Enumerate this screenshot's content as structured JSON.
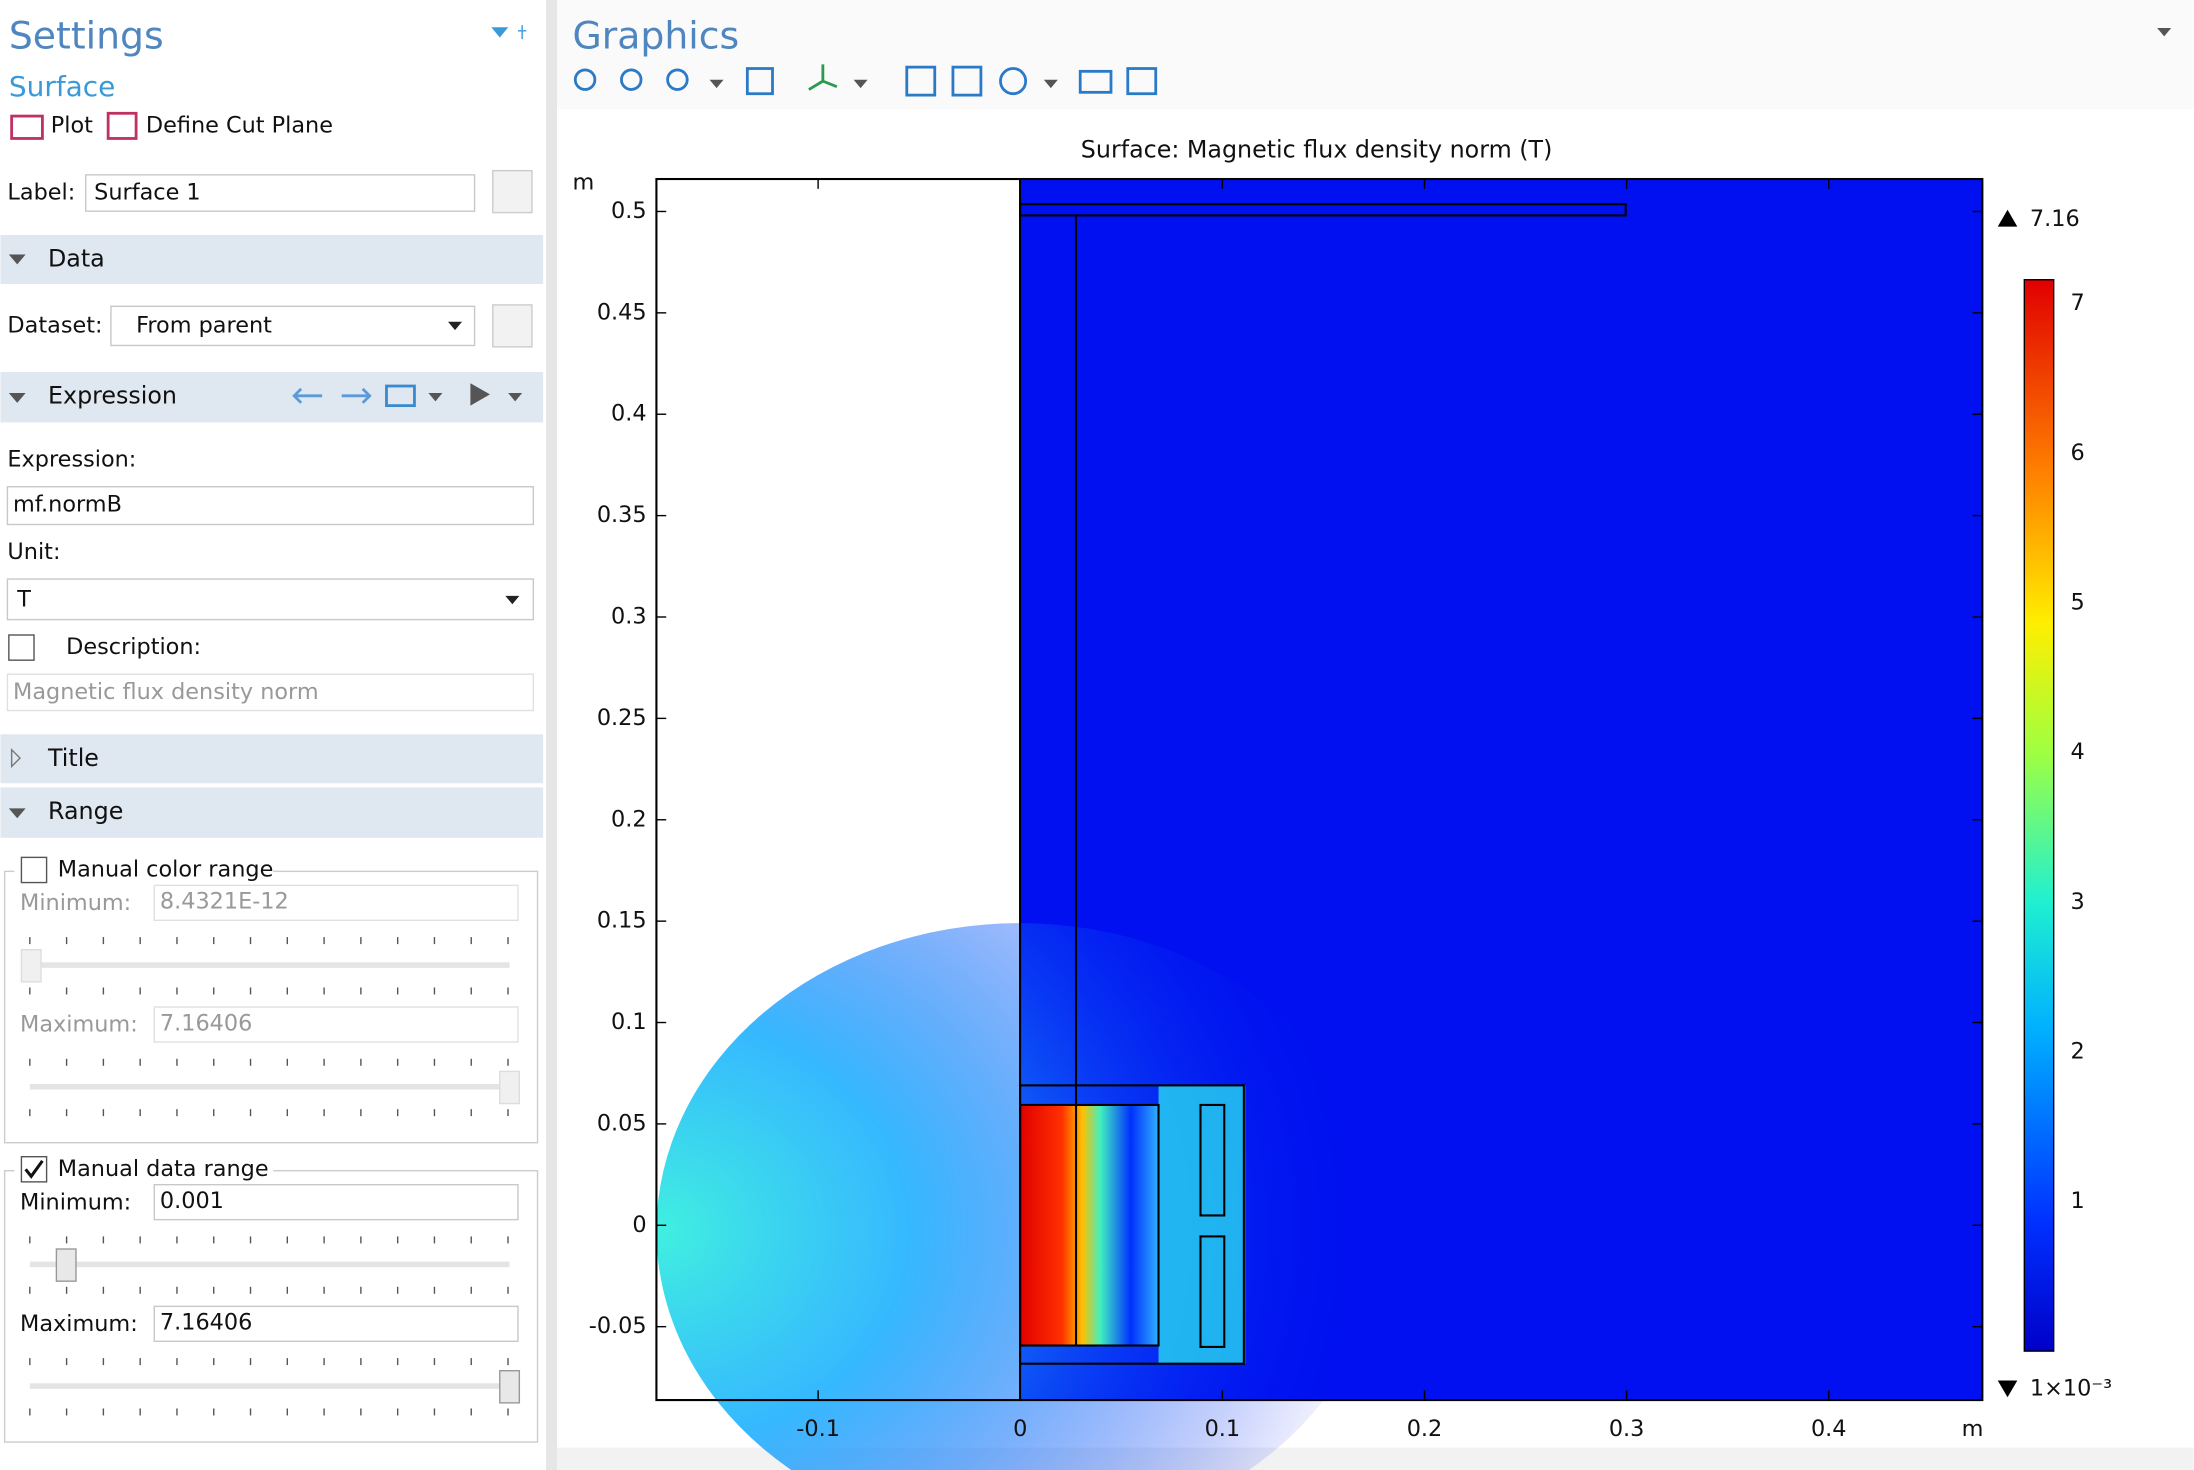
{
  "settings": {
    "title": "Settings",
    "node": "Surface",
    "plot": "Plot",
    "cut_plane": "Define Cut Plane",
    "label_field": {
      "label": "Label:",
      "value": "Surface 1"
    },
    "data_section": "Data",
    "dataset": {
      "label": "Dataset:",
      "value": "From parent"
    },
    "expression_section": "Expression",
    "expression": {
      "label": "Expression:",
      "value": "mf.normB"
    },
    "unit": {
      "label": "Unit:",
      "value": "T"
    },
    "description": {
      "label": "Description:",
      "value": "Magnetic flux density norm",
      "checked": false
    },
    "title_section": "Title",
    "range_section": "Range",
    "color_range": {
      "label": "Manual color range",
      "checked": false,
      "minimum_label": "Minimum:",
      "minimum": "8.4321E-12",
      "maximum_label": "Maximum:",
      "maximum": "7.16406"
    },
    "data_range": {
      "label": "Manual data range",
      "checked": true,
      "minimum_label": "Minimum:",
      "minimum": "0.001",
      "maximum_label": "Maximum:",
      "maximum": "7.16406"
    }
  },
  "graphics": {
    "title": "Graphics",
    "plot": {
      "title": "Surface: Magnetic flux density norm (T)",
      "x_unit": "m",
      "y_unit": "m",
      "xlim": [
        -0.18,
        0.476
      ],
      "ylim": [
        -0.0862,
        0.516
      ],
      "xticks": [
        -0.1,
        0,
        0.1,
        0.2,
        0.3,
        0.4
      ],
      "yticks": [
        -0.05,
        0,
        0.05,
        0.1,
        0.15,
        0.2,
        0.25,
        0.3,
        0.35,
        0.4,
        0.45,
        0.5
      ],
      "colorbar": {
        "max": 7.16,
        "min": {
          "value": 0.001,
          "label": "1×10⁻³"
        },
        "ticks": [
          1,
          2,
          3,
          4,
          5,
          6,
          7
        ]
      }
    }
  }
}
